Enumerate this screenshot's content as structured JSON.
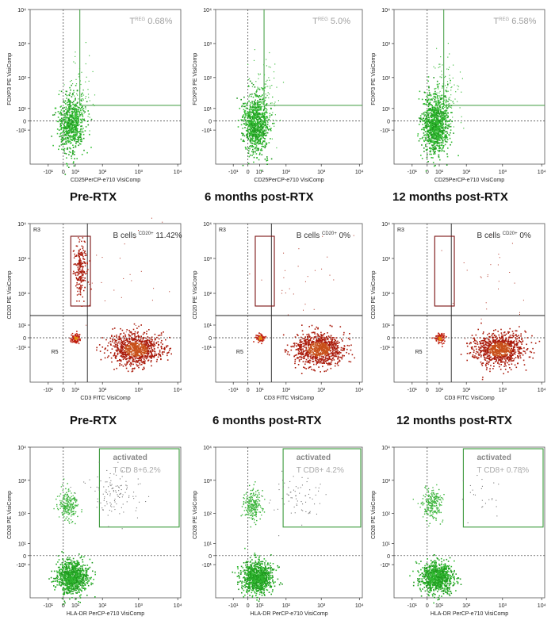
{
  "figure": {
    "row1": {
      "panels": [
        {
          "label_main": "T",
          "label_sup": "REG",
          "label_pct": "0.68%",
          "density": 1.0
        },
        {
          "label_main": "T",
          "label_sup": "REG",
          "label_pct": "5.0%",
          "density": 1.3
        },
        {
          "label_main": "T",
          "label_sup": "REG",
          "label_pct": "6.58%",
          "density": 1.6
        }
      ],
      "ylabel": "FOXP3 PE VisiComp",
      "xlabel": "CD25PerCP-e710 VisiComp"
    },
    "row2": {
      "panels": [
        {
          "label_main": "B cells",
          "label_sup": "CD20+",
          "label_pct": "11.42%",
          "gate_r3": "R3",
          "gate_r5": "R5"
        },
        {
          "label_main": "B cells",
          "label_sup": "CD20+",
          "label_pct": "0%",
          "gate_r3": "R3",
          "gate_r5": "R5"
        },
        {
          "label_main": "B cells",
          "label_sup": "CD20+",
          "label_pct": "0%",
          "gate_r3": "R3",
          "gate_r5": "R5"
        }
      ],
      "ylabel": "CD20 PE VisiComp",
      "xlabel": "CD3 FITC VisiComp"
    },
    "row3": {
      "panels": [
        {
          "title": "activated",
          "subtitle": "T CD 8+6.2%"
        },
        {
          "title": "activated",
          "subtitle": "T CD8+ 4.2%"
        },
        {
          "title": "activated",
          "subtitle": "T CD8+ 0.78%"
        }
      ],
      "ylabel": "CD28 PE VisiComp",
      "xlabel": "HLA-DR PerCP-e710 VisiComp"
    },
    "captions_row1": [
      "Pre-RTX",
      "6 months post-RTX",
      "12 months post-RTX"
    ],
    "captions_row2": [
      "Pre-RTX",
      "6 months post-RTX",
      "12 months post-RTX"
    ],
    "axis_ticks": {
      "x": [
        "-10¹",
        "0",
        "10¹",
        "10²",
        "10³",
        "10⁴"
      ],
      "y": [
        "-10¹",
        "0",
        "10¹",
        "10²",
        "10³",
        "10⁴"
      ]
    },
    "colors": {
      "green": "#22aa22",
      "red": "#aa1a0a",
      "orange": "#e08a10",
      "gate_green": "#3c9a3c",
      "gate_red": "#7a1010",
      "label_gray": "#a0a0a0"
    }
  }
}
